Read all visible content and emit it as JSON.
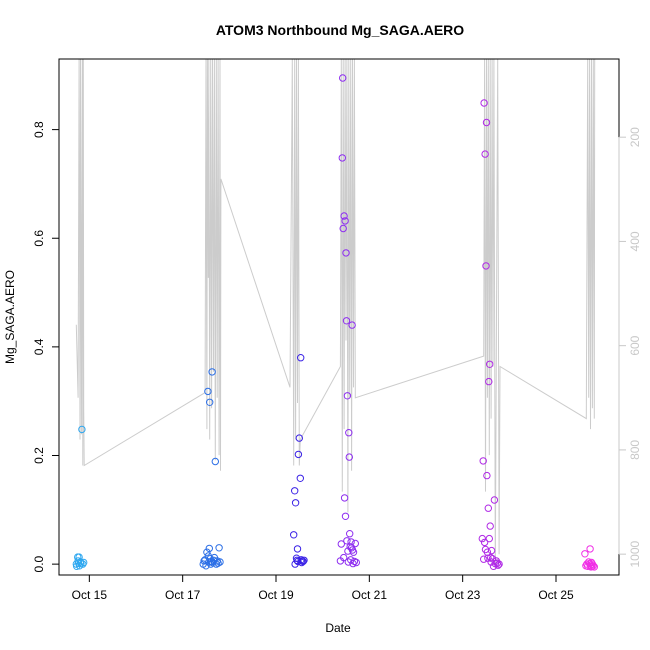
{
  "chart_data": {
    "type": "scatter",
    "title": "ATOM3 Northbound Mg_SAGA.AERO",
    "xlabel": "Date",
    "ylabel": "Mg_SAGA.AERO",
    "x_tick_labels": [
      "Oct 15",
      "Oct 17",
      "Oct 19",
      "Oct 21",
      "Oct 23",
      "Oct 25"
    ],
    "x_tick_values": [
      15,
      17,
      19,
      21,
      23,
      25
    ],
    "xlim": [
      14.35,
      26.35
    ],
    "ylim": [
      -0.02,
      0.93
    ],
    "y_ticks": [
      0.0,
      0.2,
      0.4,
      0.6,
      0.8
    ],
    "y_tick_labels": [
      "0.0",
      "0.2",
      "0.4",
      "0.6",
      "0.8"
    ],
    "right_axis": {
      "ticks": [
        200,
        400,
        600,
        800,
        1000
      ],
      "tick_labels": [
        "200",
        "400",
        "600",
        "800",
        "1000"
      ],
      "range_top": 50,
      "range_bottom": 1040,
      "color": "#c8c8c8"
    },
    "background_series": {
      "color": "#cccccc",
      "x": [
        14.72,
        14.76,
        14.78,
        14.8,
        14.81,
        14.83,
        14.85,
        14.86,
        14.87,
        14.88,
        14.89,
        17.48,
        17.5,
        17.52,
        17.53,
        17.55,
        17.56,
        17.58,
        17.6,
        17.62,
        17.64,
        17.66,
        17.68,
        17.7,
        17.72,
        17.74,
        17.76,
        17.78,
        17.8,
        17.81,
        17.82,
        19.3,
        19.35,
        19.38,
        19.4,
        19.42,
        19.44,
        19.46,
        19.48,
        19.5,
        19.52,
        20.38,
        20.4,
        20.42,
        20.44,
        20.46,
        20.48,
        20.5,
        20.52,
        20.54,
        20.56,
        20.58,
        20.6,
        20.62,
        20.64,
        20.66,
        20.68,
        20.7,
        23.45,
        23.47,
        23.49,
        23.51,
        23.53,
        23.55,
        23.57,
        23.59,
        23.61,
        23.63,
        23.65,
        23.67,
        23.7,
        23.75,
        23.78,
        23.8,
        25.65,
        25.68,
        25.7,
        25.72,
        25.74,
        25.76,
        25.78,
        25.8,
        25.82,
        25.83
      ],
      "alt": [
        560,
        700,
        50,
        780,
        50,
        770,
        50,
        830,
        50,
        720,
        830,
        690,
        50,
        760,
        50,
        470,
        50,
        780,
        50,
        720,
        50,
        650,
        50,
        820,
        50,
        700,
        50,
        810,
        50,
        840,
        280,
        680,
        50,
        830,
        50,
        780,
        50,
        710,
        50,
        830,
        780,
        640,
        50,
        880,
        50,
        760,
        50,
        590,
        50,
        920,
        50,
        700,
        50,
        840,
        50,
        680,
        50,
        700,
        620,
        50,
        880,
        50,
        700,
        50,
        810,
        50,
        740,
        50,
        640,
        50,
        1030,
        50,
        1000,
        640,
        740,
        50,
        700,
        50,
        760,
        50,
        720,
        50,
        740,
        50
      ]
    },
    "series": [
      {
        "color": "#2fa8f0",
        "x": [
          14.72,
          14.73,
          14.75,
          14.76,
          14.77,
          14.78,
          14.79,
          14.81,
          14.82,
          14.84,
          14.86,
          14.88
        ],
        "y": [
          0.0,
          -0.004,
          0.013,
          0.006,
          0.002,
          0.013,
          -0.003,
          0.004,
          0.001,
          0.248,
          0.0,
          0.003
        ]
      },
      {
        "color": "#2c6fe6",
        "x": [
          17.44,
          17.46,
          17.48,
          17.5,
          17.52,
          17.54,
          17.55,
          17.56,
          17.57,
          17.58,
          17.59,
          17.6,
          17.62,
          17.63,
          17.64,
          17.66,
          17.68,
          17.7,
          17.72,
          17.74,
          17.76,
          17.78,
          17.8
        ],
        "y": [
          0.0,
          0.006,
          0.008,
          -0.003,
          0.022,
          0.318,
          0.015,
          0.004,
          0.029,
          0.298,
          0.01,
          0.0,
          0.005,
          0.354,
          0.003,
          0.007,
          0.012,
          0.189,
          0.0,
          0.006,
          0.002,
          0.03,
          0.004
        ]
      },
      {
        "color": "#3a22e6",
        "x": [
          19.38,
          19.4,
          19.41,
          19.42,
          19.44,
          19.45,
          19.46,
          19.47,
          19.48,
          19.5,
          19.52,
          19.53,
          19.54,
          19.55,
          19.56,
          19.58,
          19.6
        ],
        "y": [
          0.054,
          0.135,
          0.0,
          0.113,
          0.011,
          0.007,
          0.028,
          0.005,
          0.202,
          0.232,
          0.158,
          0.38,
          0.008,
          0.003,
          0.006,
          0.005,
          0.007
        ]
      },
      {
        "color": "#8e2ef0",
        "x": [
          20.38,
          20.4,
          20.42,
          20.43,
          20.44,
          20.45,
          20.46,
          20.47,
          20.48,
          20.49,
          20.5,
          20.51,
          20.52,
          20.53,
          20.54,
          20.55,
          20.56,
          20.57,
          20.58,
          20.59,
          20.6,
          20.61,
          20.62,
          20.63,
          20.64,
          20.65,
          20.66,
          20.68,
          20.7,
          20.72
        ],
        "y": [
          0.006,
          0.037,
          0.748,
          0.895,
          0.618,
          0.012,
          0.641,
          0.122,
          0.632,
          0.088,
          0.573,
          0.448,
          0.043,
          0.31,
          0.024,
          0.004,
          0.242,
          0.197,
          0.056,
          0.032,
          0.008,
          0.041,
          0.03,
          0.44,
          0.026,
          0.001,
          0.022,
          0.005,
          0.038,
          0.003
        ]
      },
      {
        "color": "#b02ae6",
        "x": [
          23.42,
          23.44,
          23.45,
          23.46,
          23.47,
          23.48,
          23.49,
          23.5,
          23.51,
          23.52,
          23.53,
          23.54,
          23.55,
          23.56,
          23.57,
          23.58,
          23.59,
          23.6,
          23.61,
          23.62,
          23.64,
          23.66,
          23.68,
          23.7,
          23.72,
          23.74,
          23.76,
          23.78
        ],
        "y": [
          0.047,
          0.19,
          0.009,
          0.849,
          0.04,
          0.755,
          0.027,
          0.549,
          0.813,
          0.163,
          0.022,
          0.011,
          0.103,
          0.336,
          0.047,
          0.368,
          0.07,
          0.012,
          0.004,
          0.025,
          0.01,
          -0.004,
          0.118,
          0.001,
          0.006,
          0.002,
          -0.002,
          0.0
        ]
      },
      {
        "color": "#f030e6",
        "x": [
          25.62,
          25.64,
          25.66,
          25.68,
          25.7,
          25.72,
          25.73,
          25.74,
          25.75,
          25.76,
          25.77,
          25.78,
          25.8,
          25.82
        ],
        "y": [
          0.019,
          -0.003,
          0.0,
          -0.004,
          0.004,
          0.001,
          0.028,
          -0.002,
          -0.005,
          0.003,
          -0.004,
          0.0,
          -0.003,
          -0.005
        ]
      }
    ]
  }
}
